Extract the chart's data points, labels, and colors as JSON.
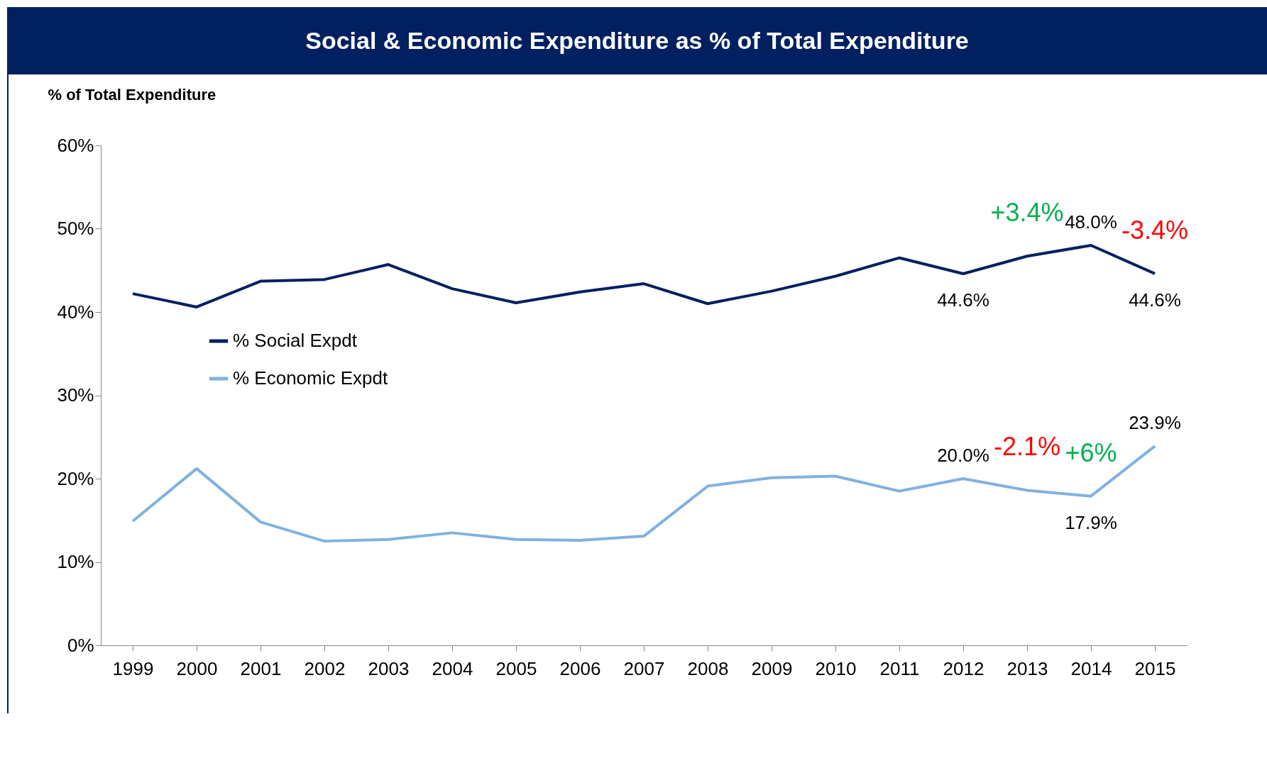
{
  "chart_data": {
    "type": "line",
    "title": "Social & Economic Expenditure as % of Total Expenditure",
    "ylabel": "% of Total Expenditure",
    "categories": [
      "1999",
      "2000",
      "2001",
      "2002",
      "2003",
      "2004",
      "2005",
      "2006",
      "2007",
      "2008",
      "2009",
      "2010",
      "2011",
      "2012",
      "2013",
      "2014",
      "2015"
    ],
    "series": [
      {
        "name": "% Social Expdt",
        "color": "#002060",
        "values": [
          42.2,
          40.6,
          43.7,
          43.9,
          45.7,
          42.8,
          41.1,
          42.4,
          43.4,
          41.0,
          42.5,
          44.3,
          46.5,
          44.6,
          46.7,
          48.0,
          44.6
        ],
        "value_labels": [
          null,
          null,
          null,
          null,
          null,
          null,
          null,
          null,
          null,
          null,
          null,
          null,
          null,
          "44.6%",
          null,
          "48.0%",
          "44.6%"
        ]
      },
      {
        "name": "% Economic Expdt",
        "color": "#7fb2e0",
        "values": [
          14.9,
          21.2,
          14.8,
          12.5,
          12.7,
          13.5,
          12.7,
          12.6,
          13.1,
          19.1,
          20.1,
          20.3,
          18.5,
          20.0,
          18.6,
          17.9,
          23.9
        ],
        "value_labels": [
          null,
          null,
          null,
          null,
          null,
          null,
          null,
          null,
          null,
          null,
          null,
          null,
          null,
          "20.0%",
          null,
          "17.9%",
          "23.9%"
        ]
      }
    ],
    "ylim": [
      0,
      60
    ],
    "yticks": [
      {
        "value": 0,
        "label": "0%"
      },
      {
        "value": 10,
        "label": "10%"
      },
      {
        "value": 20,
        "label": "20%"
      },
      {
        "value": 30,
        "label": "30%"
      },
      {
        "value": 40,
        "label": "40%"
      },
      {
        "value": 50,
        "label": "50%"
      },
      {
        "value": 60,
        "label": "60%"
      }
    ],
    "grid": false,
    "legend": "left",
    "marker": "none",
    "line_style": "solid",
    "annotations": [
      {
        "text": "+3.4%",
        "x": "2013",
        "y": 46.7
      },
      {
        "text": "-3.4%",
        "x": "2015",
        "y": 44.6
      },
      {
        "text": "-2.1%",
        "x": "2013",
        "y": 18.6
      },
      {
        "text": "+6%",
        "x": "2014",
        "y": 17.9
      }
    ]
  }
}
